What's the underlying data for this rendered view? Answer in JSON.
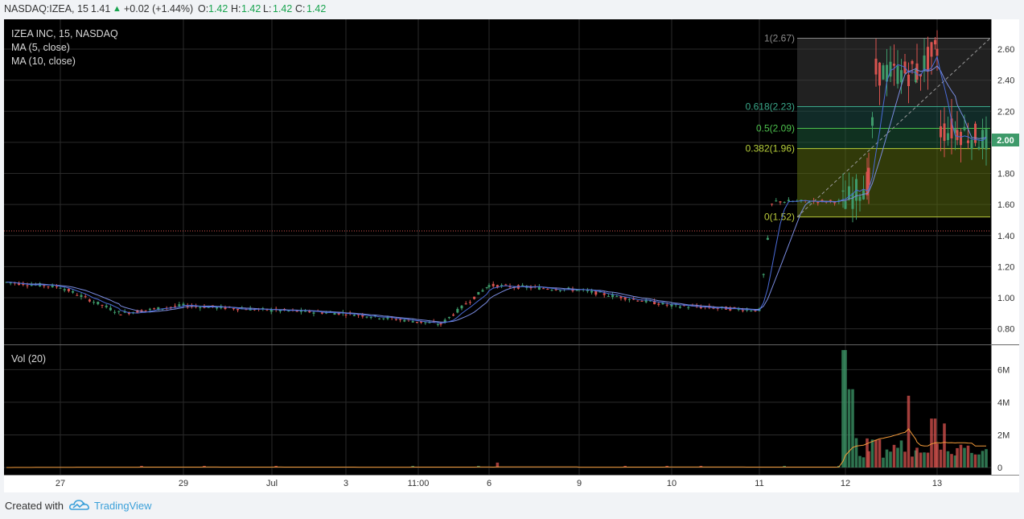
{
  "header": {
    "symbol": "NASDAQ:IZEA, 15",
    "last": "1.41",
    "change": "+0.02 (+1.44%)",
    "o_label": "O:",
    "o_value": "1.42",
    "h_label": "H:",
    "h_value": "1.42",
    "l_label": "L:",
    "l_value": "1.42",
    "c_label": "C:",
    "c_value": "1.42"
  },
  "legend": {
    "title": "IZEA INC, 15, NASDAQ",
    "ma5": "MA (5, close)",
    "ma10": "MA (10, close)",
    "vol": "Vol (20)"
  },
  "colors": {
    "up": "#3e9a6a",
    "down": "#d9534f",
    "ma5": "#4a6bd8",
    "ma10": "#7a8ce0",
    "vol_ma": "#f39a3a",
    "background": "#000000",
    "grid": "#2a2a2a",
    "fib_zone_low": "#5a6a10",
    "fib_zone_mid": "#1e5a3a",
    "fib_zone_top": "#3c3c3c"
  },
  "footer": {
    "created_with": "Created with",
    "brand": "TradingView"
  },
  "chart_data": [
    {
      "type": "candlestick",
      "title": "IZEA INC, 15, NASDAQ",
      "x_ticks": [
        "27",
        "29",
        "Jul",
        "3",
        "11:00",
        "6",
        "9",
        "10",
        "11",
        "12",
        "13"
      ],
      "y_ticks": [
        "0.80",
        "1.00",
        "1.20",
        "1.40",
        "1.60",
        "1.80",
        "2.00",
        "2.20",
        "2.40",
        "2.60"
      ],
      "ylim": [
        0.7,
        2.74
      ],
      "last_price_label": "2.00",
      "reference_line": 1.41,
      "fibonacci": [
        {
          "level": "1",
          "value": "2.67",
          "label": "1(2.67)"
        },
        {
          "level": "0.618",
          "value": "2.23",
          "label": "0.618(2.23)"
        },
        {
          "level": "0.5",
          "value": "2.09",
          "label": "0.5(2.09)"
        },
        {
          "level": "0.382",
          "value": "1.96",
          "label": "0.382(1.96)"
        },
        {
          "level": "0",
          "value": "1.52",
          "label": "0(1.52)"
        }
      ],
      "price_path": [
        {
          "date": "Jun 26",
          "close": 1.1
        },
        {
          "date": "Jun 27",
          "close": 1.07
        },
        {
          "date": "Jun 28",
          "close": 0.9
        },
        {
          "date": "Jun 29",
          "close": 0.95
        },
        {
          "date": "Jul 2",
          "close": 0.92
        },
        {
          "date": "Jul 3",
          "close": 0.9
        },
        {
          "date": "Jul 5",
          "close": 0.83
        },
        {
          "date": "Jul 6",
          "close": 1.08
        },
        {
          "date": "Jul 9",
          "close": 1.05
        },
        {
          "date": "Jul 10",
          "close": 0.95
        },
        {
          "date": "Jul 11",
          "close": 0.92
        },
        {
          "date": "Jul 12",
          "close": 1.62
        },
        {
          "date": "Jul 12",
          "close": 1.75
        },
        {
          "date": "Jul 12",
          "close": 2.45
        },
        {
          "date": "Jul 13",
          "close": 2.6
        },
        {
          "date": "Jul 13",
          "close": 2.08
        },
        {
          "date": "Jul 13",
          "close": 2.0
        }
      ]
    },
    {
      "type": "bar",
      "title": "Vol (20)",
      "y_ticks": [
        "0",
        "2M",
        "4M",
        "6M"
      ],
      "ylim": [
        0,
        7.4
      ],
      "unit": "M",
      "volume_path": [
        {
          "date": "Jul 6",
          "value": 0.3
        },
        {
          "date": "Jul 12",
          "value": 7.2
        },
        {
          "date": "Jul 12",
          "value": 4.8
        },
        {
          "date": "Jul 12",
          "value": 1.8
        },
        {
          "date": "Jul 12",
          "value": 1.7
        },
        {
          "date": "Jul 12",
          "value": 4.4
        },
        {
          "date": "Jul 13",
          "value": 3.0
        },
        {
          "date": "Jul 13",
          "value": 2.7
        },
        {
          "date": "Jul 13",
          "value": 0.8
        }
      ]
    }
  ]
}
